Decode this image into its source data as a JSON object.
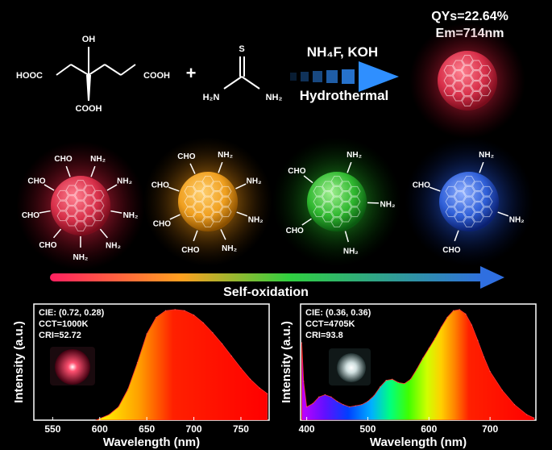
{
  "reaction": {
    "citric_acid": {
      "oh": "OH",
      "left_group": "HOOC",
      "right_group": "COOH",
      "bottom_group": "COOH"
    },
    "plus": "+",
    "thiourea": {
      "s": "S",
      "left_amine": "H₂N",
      "right_amine": "NH₂"
    },
    "reagents": "NH₄F, KOH",
    "condition": "Hydrothermal",
    "product_qy": "QYs=22.64%",
    "product_em": "Em=714nm"
  },
  "dots": [
    {
      "color": "#e8304a",
      "groups": [
        "NH₂",
        "NH₂",
        "NH₂",
        "NH₂",
        "NH₂",
        "CHO",
        "CHO",
        "CHO",
        "CHO"
      ]
    },
    {
      "color": "#f39a1d",
      "groups": [
        "NH₂",
        "NH₂",
        "NH₂",
        "NH₂",
        "CHO",
        "CHO",
        "CHO",
        "CHO"
      ]
    },
    {
      "color": "#2fc43a",
      "groups": [
        "NH₂",
        "NH₂",
        "NH₂",
        "CHO",
        "CHO"
      ]
    },
    {
      "color": "#2f6fe0",
      "groups": [
        "NH₂",
        "NH₂",
        "CHO",
        "CHO"
      ]
    }
  ],
  "process_label": "Self-oxidation",
  "panel_left": {
    "cie": "CIE: (0.72, 0.28)",
    "cct": "CCT=1000K",
    "cri": "CRI=52.72",
    "led_color": "#ff3b5a"
  },
  "panel_right": {
    "cie": "CIE: (0.36, 0.36)",
    "cct": "CCT=4705K",
    "cri": "CRI=93.8",
    "led_color": "#e8f0f0"
  },
  "chart_data": [
    {
      "type": "area",
      "xlabel": "Wavelength (nm)",
      "ylabel": "Intensity (a.u.)",
      "xlim": [
        530,
        780
      ],
      "ylim": [
        0,
        1.05
      ],
      "xticks": [
        550,
        600,
        650,
        700,
        750
      ],
      "x": [
        596,
        610,
        620,
        630,
        640,
        650,
        660,
        670,
        680,
        690,
        700,
        710,
        720,
        730,
        740,
        750,
        760,
        770,
        778
      ],
      "y": [
        0.0,
        0.05,
        0.12,
        0.28,
        0.52,
        0.78,
        0.93,
        0.99,
        1.0,
        0.99,
        0.95,
        0.88,
        0.79,
        0.69,
        0.58,
        0.47,
        0.37,
        0.29,
        0.24
      ]
    },
    {
      "type": "area",
      "xlabel": "Wavelength (nm)",
      "ylabel": "Intensity (a.u.)",
      "xlim": [
        390,
        775
      ],
      "ylim": [
        0,
        1.05
      ],
      "xticks": [
        400,
        500,
        600,
        700
      ],
      "x": [
        392,
        395,
        400,
        410,
        420,
        430,
        440,
        450,
        460,
        470,
        480,
        490,
        500,
        510,
        520,
        530,
        540,
        550,
        560,
        570,
        580,
        590,
        600,
        610,
        620,
        630,
        640,
        650,
        660,
        670,
        680,
        690,
        700,
        720,
        740,
        760,
        772
      ],
      "y": [
        0.7,
        0.35,
        0.12,
        0.15,
        0.21,
        0.23,
        0.21,
        0.17,
        0.14,
        0.12,
        0.13,
        0.14,
        0.17,
        0.22,
        0.3,
        0.36,
        0.37,
        0.34,
        0.33,
        0.37,
        0.46,
        0.56,
        0.65,
        0.74,
        0.84,
        0.93,
        0.99,
        1.0,
        0.96,
        0.86,
        0.72,
        0.57,
        0.44,
        0.27,
        0.14,
        0.05,
        0.02
      ]
    }
  ]
}
